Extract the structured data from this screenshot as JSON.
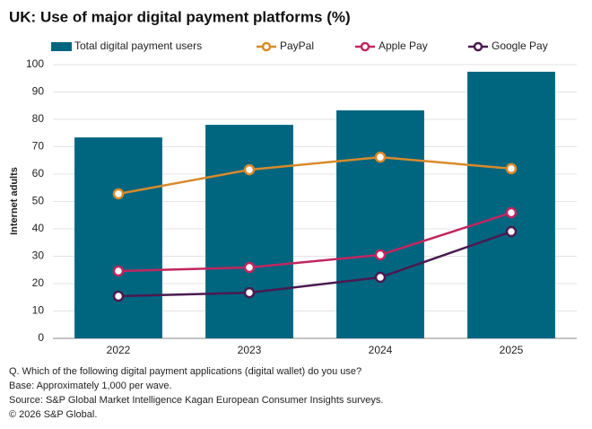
{
  "chart_data": {
    "type": "combo",
    "title": "UK: Use of major digital payment platforms (%)",
    "y_label": "Internet adults",
    "categories": [
      "2022",
      "2023",
      "2024",
      "2025"
    ],
    "series": [
      {
        "name": "Total digital payment users",
        "type": "bar",
        "color": "#00657f",
        "values": [
          73.4,
          78.0,
          83.3,
          97.4
        ]
      },
      {
        "name": "PayPal",
        "type": "line",
        "color": "#d98a2b",
        "values": [
          52.8,
          61.6,
          66.2,
          62.0
        ]
      },
      {
        "name": "Apple Pay",
        "type": "line",
        "color": "#c2265f",
        "values": [
          24.6,
          25.9,
          30.5,
          45.9
        ]
      },
      {
        "name": "Google Pay",
        "type": "line",
        "color": "#4a1a50",
        "values": [
          15.4,
          16.7,
          22.3,
          39.0
        ]
      }
    ],
    "ylim": [
      0,
      100
    ],
    "yticks": [
      0,
      10,
      20,
      30,
      40,
      50,
      60,
      70,
      80,
      90,
      100
    ],
    "grid": true,
    "legend": "top",
    "notes": [
      "Q. Which of the following digital payment applications (digital wallet) do you use?",
      "Base: Approximately 1,000 per wave.",
      "Source: S&P Global Market Intelligence Kagan European Consumer Insights surveys.",
      "© 2026 S&P Global."
    ]
  }
}
